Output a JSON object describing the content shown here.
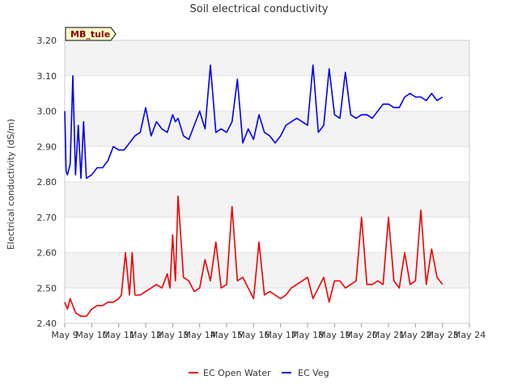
{
  "chart_data": {
    "type": "line",
    "title": "Soil electrical conductivity",
    "ylabel": "Electrical conductivity (dS/m)",
    "xlabel": "",
    "site_label": "MB_tule",
    "ylim": [
      2.4,
      3.2
    ],
    "xlim": [
      9,
      24
    ],
    "grid": "horizontal",
    "legend_position": "bottom-center",
    "y_ticks": [
      "2.40",
      "2.50",
      "2.60",
      "2.70",
      "2.80",
      "2.90",
      "3.00",
      "3.10",
      "3.20"
    ],
    "y_tick_values": [
      2.4,
      2.5,
      2.6,
      2.7,
      2.8,
      2.9,
      3.0,
      3.1,
      3.2
    ],
    "x_ticks": [
      "May 9",
      "May 10",
      "May 11",
      "May 12",
      "May 13",
      "May 14",
      "May 15",
      "May 16",
      "May 17",
      "May 18",
      "May 19",
      "May 20",
      "May 21",
      "May 22",
      "May 23",
      "May 24"
    ],
    "x_tick_values": [
      9,
      10,
      11,
      12,
      13,
      14,
      15,
      16,
      17,
      18,
      19,
      20,
      21,
      22,
      23,
      24
    ],
    "series": [
      {
        "name": "EC Open Water",
        "color": "#ee0000",
        "x": [
          9.0,
          9.1,
          9.2,
          9.3,
          9.4,
          9.6,
          9.8,
          10.0,
          10.2,
          10.4,
          10.6,
          10.8,
          11.0,
          11.1,
          11.25,
          11.4,
          11.5,
          11.6,
          11.8,
          12.0,
          12.2,
          12.4,
          12.6,
          12.8,
          12.9,
          13.0,
          13.1,
          13.2,
          13.4,
          13.6,
          13.8,
          14.0,
          14.2,
          14.4,
          14.6,
          14.8,
          15.0,
          15.2,
          15.4,
          15.6,
          15.8,
          16.0,
          16.2,
          16.4,
          16.6,
          16.8,
          17.0,
          17.2,
          17.4,
          17.6,
          17.8,
          18.0,
          18.2,
          18.4,
          18.6,
          18.8,
          19.0,
          19.2,
          19.4,
          19.6,
          19.8,
          20.0,
          20.2,
          20.4,
          20.6,
          20.8,
          21.0,
          21.2,
          21.4,
          21.6,
          21.8,
          22.0,
          22.2,
          22.4,
          22.6,
          22.8,
          23.0
        ],
        "values": [
          2.46,
          2.44,
          2.47,
          2.45,
          2.43,
          2.42,
          2.42,
          2.44,
          2.45,
          2.45,
          2.46,
          2.46,
          2.47,
          2.48,
          2.6,
          2.48,
          2.6,
          2.48,
          2.48,
          2.49,
          2.5,
          2.51,
          2.5,
          2.54,
          2.5,
          2.65,
          2.52,
          2.76,
          2.53,
          2.52,
          2.49,
          2.5,
          2.58,
          2.52,
          2.63,
          2.5,
          2.51,
          2.73,
          2.52,
          2.53,
          2.5,
          2.47,
          2.63,
          2.48,
          2.49,
          2.48,
          2.47,
          2.48,
          2.5,
          2.51,
          2.52,
          2.53,
          2.47,
          2.5,
          2.53,
          2.46,
          2.52,
          2.52,
          2.5,
          2.51,
          2.52,
          2.7,
          2.51,
          2.51,
          2.52,
          2.51,
          2.7,
          2.52,
          2.5,
          2.6,
          2.51,
          2.52,
          2.72,
          2.51,
          2.61,
          2.53,
          2.51
        ]
      },
      {
        "name": "EC Veg",
        "color": "#0000ee",
        "x": [
          9.0,
          9.05,
          9.1,
          9.2,
          9.3,
          9.4,
          9.5,
          9.6,
          9.7,
          9.8,
          10.0,
          10.2,
          10.4,
          10.6,
          10.8,
          11.0,
          11.2,
          11.4,
          11.6,
          11.8,
          12.0,
          12.2,
          12.4,
          12.6,
          12.8,
          13.0,
          13.1,
          13.2,
          13.4,
          13.6,
          13.8,
          14.0,
          14.2,
          14.4,
          14.6,
          14.8,
          15.0,
          15.2,
          15.4,
          15.6,
          15.8,
          16.0,
          16.2,
          16.4,
          16.6,
          16.8,
          17.0,
          17.2,
          17.4,
          17.6,
          17.8,
          18.0,
          18.2,
          18.4,
          18.6,
          18.8,
          19.0,
          19.2,
          19.4,
          19.6,
          19.8,
          20.0,
          20.2,
          20.4,
          20.6,
          20.8,
          21.0,
          21.2,
          21.4,
          21.6,
          21.8,
          22.0,
          22.2,
          22.4,
          22.6,
          22.8,
          23.0
        ],
        "values": [
          3.0,
          2.83,
          2.82,
          2.85,
          3.1,
          2.82,
          2.96,
          2.81,
          2.97,
          2.81,
          2.82,
          2.84,
          2.84,
          2.86,
          2.9,
          2.89,
          2.89,
          2.91,
          2.93,
          2.94,
          3.01,
          2.93,
          2.97,
          2.95,
          2.94,
          2.99,
          2.97,
          2.98,
          2.93,
          2.92,
          2.96,
          3.0,
          2.95,
          3.13,
          2.94,
          2.95,
          2.94,
          2.97,
          3.09,
          2.91,
          2.95,
          2.92,
          2.99,
          2.94,
          2.93,
          2.91,
          2.93,
          2.96,
          2.97,
          2.98,
          2.97,
          2.96,
          3.13,
          2.94,
          2.96,
          3.12,
          2.99,
          2.98,
          3.11,
          2.99,
          2.98,
          2.99,
          2.99,
          2.98,
          3.0,
          3.02,
          3.02,
          3.01,
          3.01,
          3.04,
          3.05,
          3.04,
          3.04,
          3.03,
          3.05,
          3.03,
          3.04
        ]
      }
    ]
  }
}
